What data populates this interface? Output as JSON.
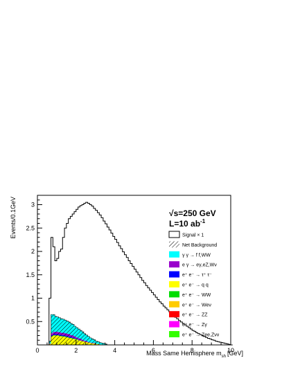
{
  "chart_data": {
    "type": "area",
    "xlabel": "Mass Same Hemisphere m",
    "xlabel_sub": "sh",
    "xlabel_unit": "[GeV]",
    "ylabel": "Events/0.1GeV",
    "xlim": [
      0,
      10
    ],
    "ylim": [
      0,
      3.2
    ],
    "x_ticks": [
      "0",
      "2",
      "4",
      "6",
      "8",
      "10"
    ],
    "x_tick_values": [
      0,
      2,
      4,
      6,
      8,
      10
    ],
    "y_ticks": [
      "0.5",
      "1",
      "1.5",
      "2",
      "2.5",
      "3"
    ],
    "y_tick_values": [
      0.5,
      1,
      1.5,
      2,
      2.5,
      3
    ],
    "annotation_energy": "√s=250 GeV",
    "annotation_lumi": "L=10 ab",
    "annotation_lumi_sup": "-1",
    "legend_position": "top-right",
    "legend": [
      {
        "label": "Signal × 1",
        "style": "outline",
        "color": "#000000"
      },
      {
        "label": "Net Background",
        "style": "hatch",
        "color": "#000000"
      },
      {
        "label": "γ γ → f f,WW",
        "style": "fill",
        "color": "#00ffff"
      },
      {
        "label": "e γ → eγ,eZ,Wν",
        "style": "fill",
        "color": "#9900cc"
      },
      {
        "label": "e⁺ e⁻ → τ⁺ τ⁻",
        "style": "fill",
        "color": "#0000ff"
      },
      {
        "label": "e⁺ e⁻ → q q",
        "style": "fill",
        "color": "#ffff00"
      },
      {
        "label": "e⁺ e⁻ → WW",
        "style": "fill",
        "color": "#00dd00"
      },
      {
        "label": "e⁺ e⁻ → Weν",
        "style": "fill",
        "color": "#ffcc00"
      },
      {
        "label": "e⁺ e⁻ → ZZ",
        "style": "fill",
        "color": "#ff0000"
      },
      {
        "label": "e⁺ e⁻ → Zγ",
        "style": "fill",
        "color": "#ff00ff"
      },
      {
        "label": "e⁺ e⁻ → Zee,Zνν",
        "style": "fill",
        "color": "#33ff00"
      }
    ],
    "signal": {
      "name": "Signal × 1",
      "x0": 0.6,
      "bin_width": 0.1,
      "values": [
        1.0,
        2.3,
        2.1,
        1.8,
        1.85,
        2.0,
        2.05,
        2.3,
        2.5,
        2.6,
        2.7,
        2.75,
        2.8,
        2.85,
        2.9,
        2.95,
        2.98,
        3.0,
        3.03,
        3.05,
        3.03,
        3.0,
        2.97,
        2.92,
        2.88,
        2.83,
        2.78,
        2.72,
        2.65,
        2.59,
        2.52,
        2.46,
        2.39,
        2.32,
        2.26,
        2.19,
        2.12,
        2.06,
        1.99,
        1.93,
        1.87,
        1.8,
        1.74,
        1.68,
        1.62,
        1.56,
        1.5,
        1.44,
        1.38,
        1.33,
        1.27,
        1.22,
        1.17,
        1.12,
        1.07,
        1.02,
        0.97,
        0.92,
        0.88,
        0.83,
        0.79,
        0.75,
        0.71,
        0.67,
        0.63,
        0.59,
        0.56,
        0.52,
        0.49,
        0.46,
        0.43,
        0.4,
        0.37,
        0.34,
        0.31,
        0.29,
        0.26,
        0.24,
        0.22,
        0.2,
        0.18,
        0.16,
        0.14,
        0.13,
        0.11,
        0.1,
        0.08,
        0.07,
        0.06,
        0.05,
        0.04,
        0.03,
        0.02,
        0.01,
        0.0
      ]
    },
    "background_stack": {
      "x0": 0.6,
      "bin_width": 0.1,
      "layers": [
        {
          "name": "e⁺ e⁻ → q q",
          "color": "#ffff00",
          "values": [
            0.02,
            0.18,
            0.2,
            0.2,
            0.2,
            0.19,
            0.18,
            0.18,
            0.17,
            0.16,
            0.15,
            0.14,
            0.13,
            0.12,
            0.11,
            0.1,
            0.09,
            0.08,
            0.07,
            0.06,
            0.05,
            0.04,
            0.03,
            0.03,
            0.02,
            0.02,
            0.01,
            0.01,
            0.01,
            0.0
          ]
        },
        {
          "name": "e⁺ e⁻ → WW",
          "color": "#00dd00",
          "values": [
            0.0,
            0.01,
            0.01,
            0.01,
            0.01,
            0.01,
            0.01,
            0.01,
            0.01,
            0.01,
            0.01,
            0.01,
            0.01,
            0.01,
            0.01,
            0.0,
            0.0,
            0.0,
            0.0,
            0.0,
            0.0,
            0.0,
            0.0,
            0.0,
            0.0,
            0.0,
            0.0,
            0.0,
            0.0,
            0.0
          ]
        },
        {
          "name": "e⁺ e⁻ → τ⁺ τ⁻",
          "color": "#0000ff",
          "values": [
            0.0,
            0.02,
            0.02,
            0.02,
            0.02,
            0.02,
            0.02,
            0.02,
            0.02,
            0.02,
            0.02,
            0.02,
            0.02,
            0.01,
            0.01,
            0.01,
            0.01,
            0.01,
            0.0,
            0.0,
            0.0,
            0.0,
            0.0,
            0.0,
            0.0,
            0.0,
            0.0,
            0.0,
            0.0,
            0.0
          ]
        },
        {
          "name": "e γ → eγ,eZ,Wν",
          "color": "#9900cc",
          "values": [
            0.01,
            0.04,
            0.05,
            0.05,
            0.05,
            0.05,
            0.05,
            0.05,
            0.05,
            0.05,
            0.05,
            0.04,
            0.04,
            0.04,
            0.03,
            0.03,
            0.03,
            0.02,
            0.02,
            0.02,
            0.01,
            0.01,
            0.01,
            0.01,
            0.0,
            0.0,
            0.0,
            0.0,
            0.0,
            0.0
          ]
        },
        {
          "name": "γ γ → f f,WW",
          "color": "#00ffff",
          "values": [
            0.05,
            0.4,
            0.37,
            0.33,
            0.32,
            0.31,
            0.3,
            0.29,
            0.28,
            0.27,
            0.26,
            0.25,
            0.24,
            0.22,
            0.21,
            0.2,
            0.18,
            0.17,
            0.15,
            0.13,
            0.12,
            0.1,
            0.09,
            0.07,
            0.06,
            0.05,
            0.04,
            0.03,
            0.02,
            0.02
          ]
        }
      ]
    }
  }
}
